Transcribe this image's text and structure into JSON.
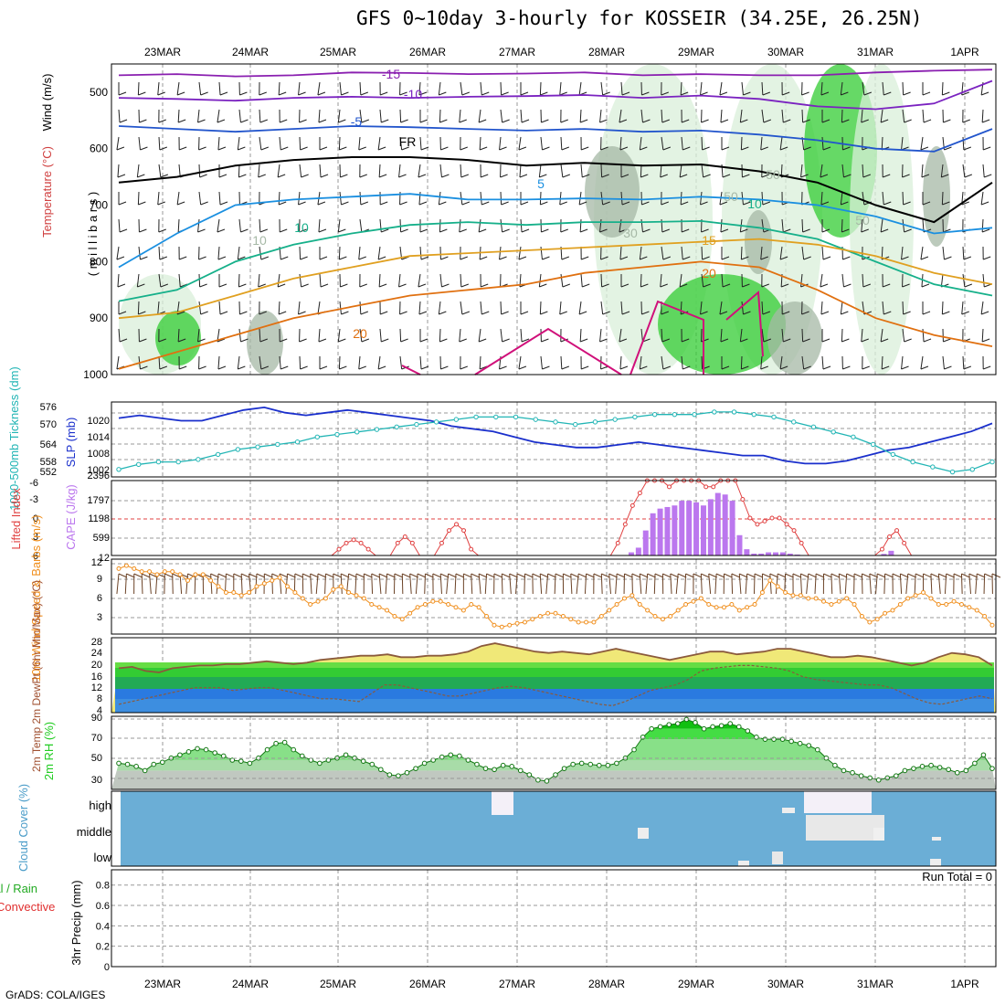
{
  "title": "GFS 0~10day 3-hourly for KOSSEIR (34.25E, 26.25N)",
  "credit": "GrADS: COLA/IGES",
  "colors": {
    "rh_green": "#33cc33",
    "rh_light": "#d9efd9",
    "rh_grey": "#a6b8a6",
    "temp_m15": "#8a1fb0",
    "temp_m10": "#7a22c0",
    "temp_m5": "#2255cc",
    "temp_fr": "#000000",
    "temp_5": "#1a8fe0",
    "temp_10": "#16b08a",
    "temp_15": "#e0a020",
    "temp_20": "#e07010",
    "temp_25": "#d0107a",
    "slp": "#1a2fcc",
    "thickness": "#22b5b5",
    "cape": "#bb77ee",
    "lifted": "#e04040",
    "wind10": "#f09020",
    "barb": "#6b4226",
    "temp2m_fill": "#f0e878",
    "dewpoint": "#8b5a3c",
    "cloud": "#6baed6",
    "rh_panel_green": "#22cc22"
  },
  "chart_data": [
    {
      "type": "heatmap",
      "name": "upper-air cross-section",
      "ylabel_wind": "Wind (m/s)",
      "ylabel_temp": "Temperature (°C)",
      "ylabel_rh": "RH (%)",
      "ylabel_units": "( m i l l i b a r s )",
      "yticks": [
        "500",
        "600",
        "700",
        "800",
        "900",
        "1000"
      ],
      "ylim": [
        450,
        1000
      ],
      "dates": [
        "23MAR",
        "24MAR",
        "25MAR",
        "26MAR",
        "27MAR",
        "28MAR",
        "29MAR",
        "30MAR",
        "31MAR",
        "1APR"
      ],
      "isotherm_labels": [
        "-15",
        "-10",
        "-5",
        "FR",
        "5",
        "10",
        "15",
        "20",
        "20",
        "10",
        "10",
        "50",
        "50",
        "50",
        "30"
      ],
      "isotherms": [
        {
          "label": "-15",
          "color_key": "temp_m15",
          "p": [
            470,
            468,
            472,
            470,
            465,
            466,
            468,
            467,
            465,
            470,
            468,
            470,
            470,
            465,
            462,
            460
          ]
        },
        {
          "label": "-10",
          "color_key": "temp_m10",
          "p": [
            510,
            512,
            515,
            510,
            508,
            510,
            508,
            507,
            505,
            510,
            506,
            512,
            525,
            530,
            520,
            480
          ]
        },
        {
          "label": "-5",
          "color_key": "temp_m5",
          "p": [
            560,
            565,
            570,
            565,
            560,
            562,
            565,
            568,
            565,
            570,
            568,
            575,
            585,
            600,
            605,
            565
          ]
        },
        {
          "label": "FR",
          "color_key": "temp_fr",
          "p": [
            660,
            650,
            630,
            620,
            615,
            615,
            620,
            630,
            625,
            630,
            628,
            640,
            660,
            700,
            730,
            660
          ]
        },
        {
          "label": "5",
          "color_key": "temp_5",
          "p": [
            810,
            750,
            700,
            690,
            685,
            680,
            690,
            690,
            688,
            690,
            685,
            690,
            700,
            720,
            750,
            740
          ]
        },
        {
          "label": "10",
          "color_key": "temp_10",
          "p": [
            870,
            850,
            800,
            770,
            750,
            735,
            730,
            735,
            730,
            730,
            728,
            740,
            760,
            800,
            840,
            860
          ]
        },
        {
          "label": "15",
          "color_key": "temp_15",
          "p": [
            900,
            890,
            860,
            830,
            810,
            790,
            785,
            780,
            775,
            770,
            765,
            760,
            770,
            790,
            820,
            840
          ]
        },
        {
          "label": "20",
          "color_key": "temp_20",
          "p": [
            990,
            960,
            930,
            900,
            880,
            860,
            850,
            840,
            820,
            810,
            800,
            810,
            850,
            900,
            930,
            950
          ]
        }
      ]
    },
    {
      "type": "line",
      "name": "SLP and thickness",
      "ylabel_left": "1000-500mb Tickness (dm)",
      "ylabel_right": "SLP (mb)",
      "yticks_thickness": [
        "576",
        "570",
        "564",
        "558",
        "552"
      ],
      "yticks_slp": [
        "1020",
        "1014",
        "1008",
        "1002"
      ],
      "series": [
        {
          "name": "SLP (mb)",
          "values": [
            1020,
            1021,
            1020,
            1019,
            1019,
            1021,
            1023,
            1024,
            1022,
            1021,
            1022,
            1023,
            1022,
            1021,
            1020,
            1019,
            1017,
            1016,
            1015,
            1013,
            1011,
            1010,
            1009,
            1009,
            1010,
            1011,
            1010,
            1009,
            1008,
            1007,
            1006,
            1006,
            1004,
            1003,
            1003,
            1004,
            1006,
            1008,
            1009,
            1011,
            1013,
            1015,
            1018
          ]
        },
        {
          "name": "Thickness (dm)",
          "values": [
            553,
            555,
            556,
            556,
            557,
            559,
            561,
            562,
            563,
            564,
            566,
            567,
            568,
            569,
            570,
            571,
            572,
            573,
            574,
            574,
            574,
            573,
            572,
            571,
            572,
            573,
            574,
            575,
            575,
            575,
            576,
            576,
            575,
            574,
            572,
            570,
            568,
            566,
            563,
            559,
            556,
            554,
            552,
            553,
            556
          ]
        }
      ]
    },
    {
      "type": "bar",
      "name": "CAPE and Lifted Index",
      "ylabel_left": "Lifted Index",
      "ylabel_right": "CAPE (J/kg)",
      "yticks_li": [
        "-6",
        "-3",
        "0",
        "3",
        "6"
      ],
      "yticks_cape": [
        "2396",
        "1797",
        "1198",
        "599",
        "12"
      ],
      "cape": [
        0,
        0,
        0,
        0,
        0,
        0,
        0,
        0,
        0,
        0,
        0,
        0,
        0,
        0,
        0,
        0,
        0,
        0,
        0,
        0,
        0,
        0,
        0,
        0,
        0,
        0,
        0,
        0,
        0,
        0,
        0,
        0,
        0,
        0,
        0,
        0,
        0,
        0,
        0,
        0,
        0,
        0,
        0,
        0,
        0,
        0,
        0,
        0,
        0,
        0,
        0,
        0,
        0,
        0,
        0,
        0,
        0,
        0,
        0,
        0,
        0,
        0,
        0,
        0,
        0,
        0,
        0,
        0,
        0,
        0,
        0,
        100,
        250,
        800,
        1350,
        1500,
        1550,
        1600,
        1750,
        1750,
        1700,
        1600,
        1800,
        2000,
        1950,
        1750,
        650,
        200,
        60,
        60,
        100,
        100,
        100,
        60,
        30,
        0,
        0,
        0,
        0,
        0,
        0,
        0,
        0,
        0,
        0,
        0,
        50,
        150,
        0,
        0,
        0,
        0,
        0,
        0,
        0,
        0,
        0,
        0,
        0,
        0,
        0,
        0
      ],
      "lifted_index": [
        6,
        6,
        6,
        6,
        6,
        6,
        6,
        6,
        6,
        6,
        6,
        6,
        6,
        6,
        6,
        6,
        6,
        6,
        6,
        6,
        6,
        6,
        6,
        6,
        6,
        6,
        6,
        6,
        6,
        6,
        5,
        4,
        3.5,
        4,
        5,
        6,
        6,
        6,
        4,
        3,
        4,
        6,
        6,
        6,
        4,
        2,
        1,
        2,
        5,
        6,
        6,
        6,
        6,
        6,
        6,
        6,
        6,
        6,
        6,
        6,
        6,
        6,
        6,
        6,
        6,
        6,
        6,
        6,
        4,
        1,
        -2,
        -4,
        -6,
        -7,
        -6,
        -5,
        -6,
        -7,
        -7,
        -6,
        -5,
        -5,
        -7,
        -8,
        -7,
        -3,
        0,
        1,
        0.5,
        0,
        0,
        1,
        2,
        4,
        6,
        6,
        6,
        6,
        6,
        6,
        6,
        6,
        6,
        6,
        5,
        3,
        2,
        4,
        6,
        6,
        6,
        6,
        6,
        6,
        6,
        6,
        6,
        6,
        6,
        6
      ]
    },
    {
      "type": "line",
      "name": "10m wind",
      "ylabel": "10m Wind Speed & Barbs (m/s)",
      "yticks": [
        "12",
        "9",
        "6",
        "3"
      ],
      "values": [
        11,
        11.5,
        11,
        10.5,
        10.5,
        10,
        10.5,
        10.5,
        10,
        9,
        10,
        10,
        9,
        8,
        7,
        7,
        6.5,
        7,
        8,
        8.5,
        9,
        9.5,
        8,
        7,
        6,
        5,
        5.5,
        6,
        7.5,
        8,
        7,
        6.5,
        6,
        5,
        4.5,
        4,
        3,
        2.5,
        3.5,
        4.5,
        5,
        5.5,
        5.5,
        5,
        4.5,
        4,
        5,
        4.5,
        3,
        1.5,
        1.2,
        1.5,
        1.8,
        2,
        2.5,
        3,
        3.5,
        3.5,
        3,
        2.5,
        2,
        2,
        2,
        3,
        4,
        5,
        6,
        6.5,
        5,
        4,
        3,
        2.5,
        3,
        4,
        5,
        5.5,
        6,
        5,
        4.5,
        4.5,
        5,
        4,
        4.5,
        5,
        7,
        9,
        8,
        7,
        6.5,
        6.5,
        6,
        6,
        5.5,
        5,
        5.5,
        6,
        5,
        3,
        2,
        2.5,
        3.5,
        4,
        5,
        6,
        6.5,
        7,
        6,
        5,
        5,
        5.5,
        5,
        4.5,
        4,
        3,
        1.5
      ]
    },
    {
      "type": "area",
      "name": "2m temperature and dewpoint",
      "ylabel": "2m Temp 2m DewPt (6hr Min/Max) (°C)",
      "yticks": [
        "28",
        "24",
        "20",
        "16",
        "12",
        "8",
        "4"
      ],
      "temp": [
        19,
        19.5,
        18,
        17.5,
        19,
        19.5,
        20,
        20,
        20.5,
        20.5,
        21,
        21.5,
        21,
        20.5,
        21,
        22,
        22.5,
        23,
        23.5,
        23.5,
        24,
        23,
        23,
        23.5,
        23.5,
        24,
        25,
        27,
        28,
        27,
        26,
        25,
        24.5,
        25,
        24.5,
        24,
        25,
        26,
        25,
        24,
        23,
        22,
        23,
        24,
        25,
        25,
        24,
        24.5,
        25,
        26,
        26,
        25,
        24,
        23,
        23,
        23.5,
        23,
        22,
        21,
        20,
        21,
        23,
        24.5,
        24,
        23,
        20
      ],
      "dewpoint": [
        6,
        7,
        8,
        9,
        10,
        11,
        12,
        12,
        12,
        11,
        11.5,
        12,
        12,
        11,
        10,
        9,
        8,
        8,
        7.5,
        7,
        10,
        13,
        13,
        12,
        11,
        10,
        9,
        9,
        10,
        11,
        12,
        12.5,
        12,
        11,
        10,
        9,
        8,
        7,
        6,
        5.5,
        7,
        9,
        11,
        12,
        13,
        15,
        18,
        19,
        19.5,
        20,
        20,
        19.5,
        19,
        18,
        16,
        15,
        14.5,
        14,
        13.5,
        13,
        13,
        12,
        10,
        8,
        6.5,
        6,
        7,
        8,
        9,
        8
      ]
    },
    {
      "type": "area",
      "name": "2m RH",
      "ylabel": "2m RH (%)",
      "yticks": [
        "90",
        "70",
        "50",
        "30"
      ],
      "values": [
        47,
        46,
        44,
        40,
        46,
        48,
        52,
        55,
        58,
        61,
        60,
        57,
        54,
        50,
        49,
        47,
        52,
        60,
        66,
        67,
        60,
        54,
        50,
        47,
        50,
        52,
        55,
        52,
        49,
        46,
        41,
        36,
        35,
        38,
        42,
        47,
        50,
        53,
        55,
        54,
        50,
        46,
        42,
        41,
        45,
        44,
        40,
        36,
        31,
        30,
        36,
        42,
        46,
        47,
        46,
        45,
        45,
        47,
        52,
        60,
        72,
        80,
        82,
        84,
        85,
        89,
        86,
        80,
        82,
        83,
        85,
        82,
        78,
        72,
        70,
        70,
        70,
        68,
        66,
        64,
        60,
        52,
        45,
        40,
        38,
        35,
        33,
        31,
        33,
        35,
        40,
        42,
        44,
        45,
        43,
        41,
        38,
        40,
        47,
        55,
        42
      ]
    },
    {
      "type": "heatmap",
      "name": "cloud cover",
      "ylabel": "Cloud Cover (%)",
      "levels": [
        "high",
        "middle",
        "low"
      ]
    },
    {
      "type": "bar",
      "name": "3hr precip",
      "ylabel_left": "Total / Rain Convective",
      "ylabel_right": "3hr Precip (mm)",
      "yticks": [
        "0.8",
        "0.6",
        "0.4",
        "0.2",
        "0"
      ],
      "annotation": "Run Total = 0",
      "values": []
    }
  ]
}
